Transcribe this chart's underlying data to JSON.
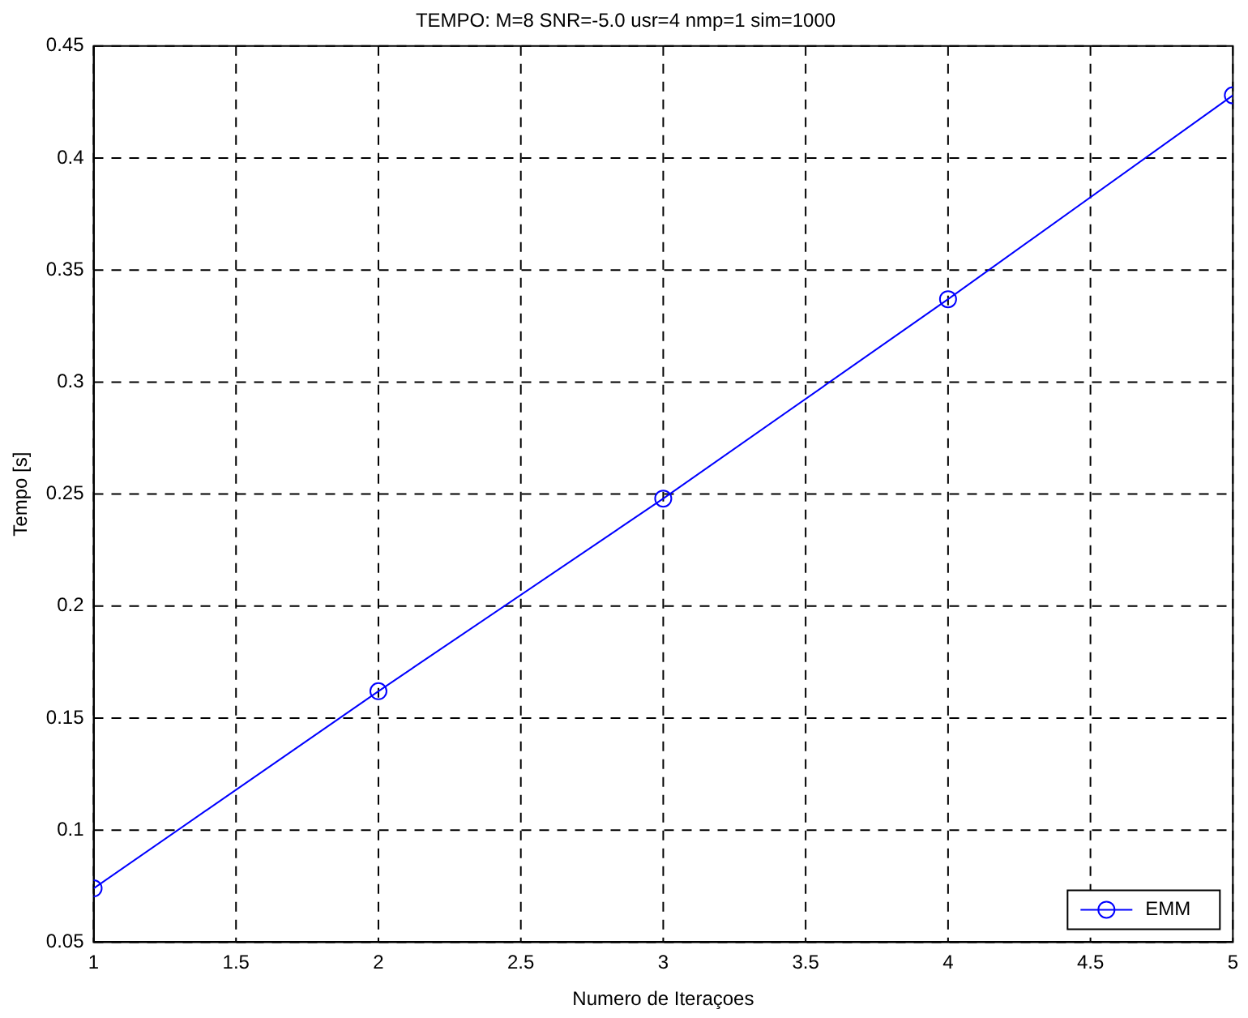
{
  "chart_data": {
    "type": "line",
    "title": "TEMPO: M=8 SNR=-5.0 usr=4 nmp=1 sim=1000",
    "xlabel": "Numero de Iteraçoes",
    "ylabel": "Tempo [s]",
    "x": [
      1,
      2,
      3,
      4,
      5
    ],
    "series": [
      {
        "name": "EMM",
        "color": "#0000ff",
        "values": [
          0.074,
          0.162,
          0.248,
          0.337,
          0.428
        ]
      }
    ],
    "xlim": [
      1,
      5
    ],
    "xticks": [
      1,
      1.5,
      2,
      2.5,
      3,
      3.5,
      4,
      4.5,
      5
    ],
    "ylim": [
      0.05,
      0.45
    ],
    "yticks": [
      0.05,
      0.1,
      0.15,
      0.2,
      0.25,
      0.3,
      0.35,
      0.4,
      0.45
    ],
    "grid": true,
    "legend": "bottom right",
    "marker": "circle",
    "line_style": "solid"
  }
}
